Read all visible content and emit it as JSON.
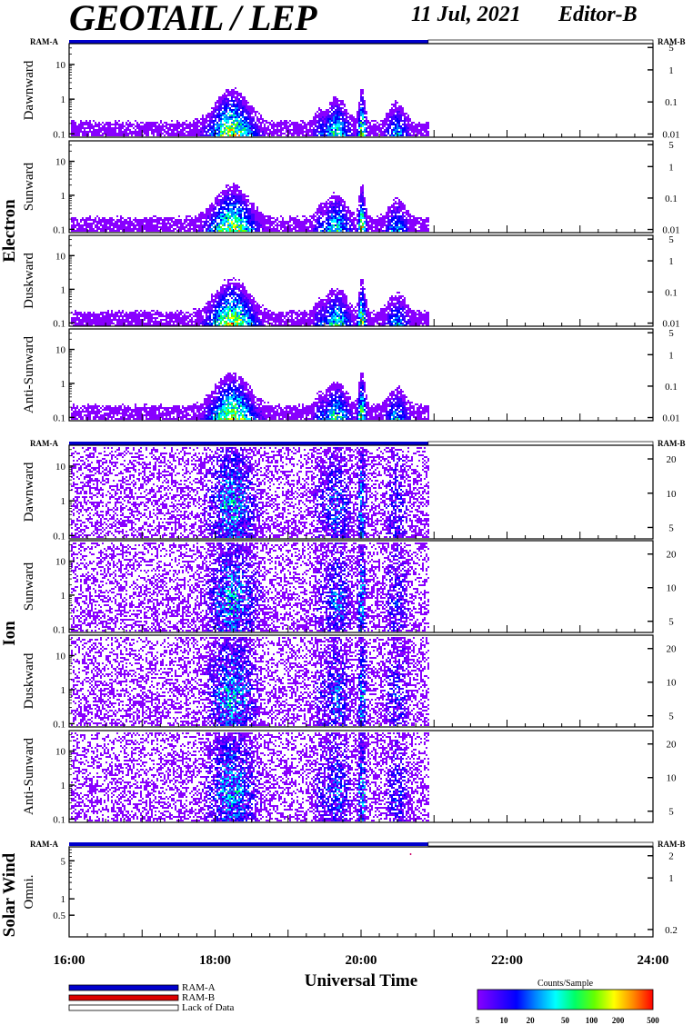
{
  "header": {
    "title": "GEOTAIL / LEP",
    "date": "11 Jul, 2021",
    "editor": "Editor-B"
  },
  "chart_data": {
    "type": "heatmap",
    "xlabel": "Universal Time",
    "x_ticks": [
      "16:00",
      "18:00",
      "20:00",
      "22:00",
      "24:00"
    ],
    "x_range_hours": [
      16,
      24
    ],
    "data_coverage_hours": [
      16.0,
      20.92
    ],
    "ram_labels": {
      "left": "RAM-A",
      "right": "RAM-B"
    },
    "legend": [
      {
        "label": "RAM-A",
        "color": "#0000cc"
      },
      {
        "label": "RAM-B",
        "color": "#dd0000"
      },
      {
        "label": "Lack of Data",
        "color": "#ffffff"
      }
    ],
    "colorbar": {
      "title": "Counts/Sample",
      "ticks": [
        "5",
        "10",
        "20",
        "50",
        "100",
        "200",
        "500"
      ],
      "scale": "log",
      "range": [
        5,
        500
      ],
      "colors": [
        "#8800ff",
        "#4400ff",
        "#0000ff",
        "#0088ff",
        "#00ffff",
        "#00ff66",
        "#66ff00",
        "#ffff00",
        "#ff8800",
        "#ff0000"
      ]
    },
    "groups": [
      {
        "name": "Electron",
        "panels": [
          {
            "label": "Dawnward",
            "left_ticks": [
              "10",
              "1",
              "0.1"
            ],
            "left_scale": "log",
            "left_range": [
              0.08,
              40
            ],
            "right_ticks": [
              "5",
              "1",
              "0.1",
              "0.01"
            ]
          },
          {
            "label": "Sunward",
            "left_ticks": [
              "10",
              "1",
              "0.1"
            ],
            "left_scale": "log",
            "left_range": [
              0.08,
              40
            ],
            "right_ticks": [
              "5",
              "1",
              "0.1",
              "0.01"
            ]
          },
          {
            "label": "Duskward",
            "left_ticks": [
              "10",
              "1",
              "0.1"
            ],
            "left_scale": "log",
            "left_range": [
              0.08,
              40
            ],
            "right_ticks": [
              "5",
              "1",
              "0.1",
              "0.01"
            ]
          },
          {
            "label": "Anti-Sunward",
            "left_ticks": [
              "10",
              "1",
              "0.1"
            ],
            "left_scale": "log",
            "left_range": [
              0.08,
              40
            ],
            "right_ticks": [
              "5",
              "1",
              "0.1",
              "0.01"
            ]
          }
        ]
      },
      {
        "name": "Ion",
        "panels": [
          {
            "label": "Dawnward",
            "left_ticks": [
              "10",
              "1",
              "0.1"
            ],
            "left_scale": "log",
            "left_range": [
              0.08,
              40
            ],
            "right_ticks": [
              "20",
              "10",
              "5"
            ]
          },
          {
            "label": "Sunward",
            "left_ticks": [
              "10",
              "1",
              "0.1"
            ],
            "left_scale": "log",
            "left_range": [
              0.08,
              40
            ],
            "right_ticks": [
              "20",
              "10",
              "5"
            ]
          },
          {
            "label": "Duskward",
            "left_ticks": [
              "10",
              "1",
              "0.1"
            ],
            "left_scale": "log",
            "left_range": [
              0.08,
              40
            ],
            "right_ticks": [
              "20",
              "10",
              "5"
            ]
          },
          {
            "label": "Anti-Sunward",
            "left_ticks": [
              "10",
              "1",
              "0.1"
            ],
            "left_scale": "log",
            "left_range": [
              0.08,
              40
            ],
            "right_ticks": [
              "20",
              "10",
              "5"
            ]
          }
        ]
      },
      {
        "name": "Solar Wind",
        "panels": [
          {
            "label": "Omni.",
            "left_ticks": [
              "5",
              "1",
              "0.5"
            ],
            "left_scale": "log",
            "left_range": [
              0.2,
              9
            ],
            "right_ticks": [
              "2",
              "1",
              "0.2"
            ]
          }
        ]
      }
    ]
  }
}
